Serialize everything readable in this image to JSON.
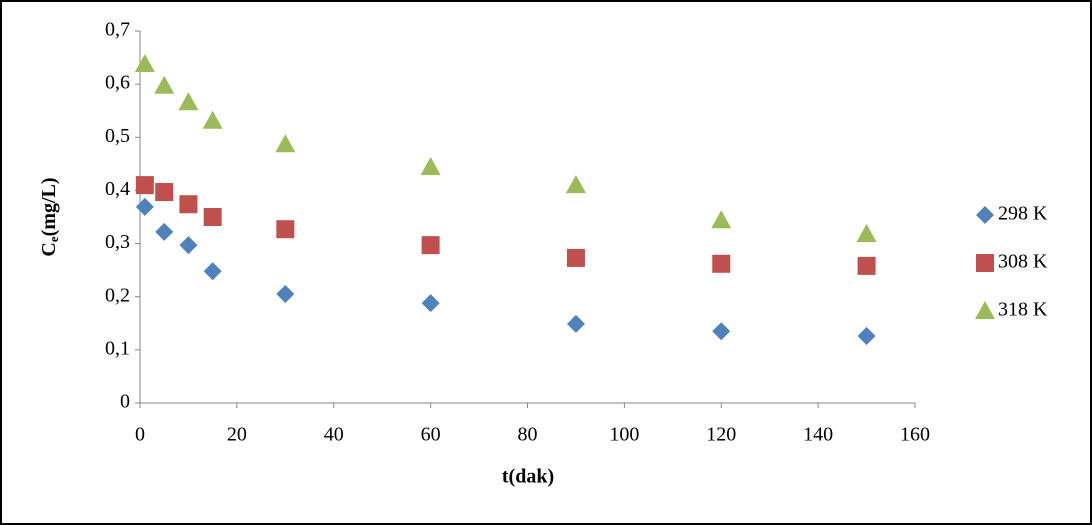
{
  "chart_data": {
    "type": "scatter",
    "x_label": "t(dak)",
    "y_label": [
      "C",
      "e",
      "(mg/L)"
    ],
    "xlim": [
      0,
      160
    ],
    "xticks": [
      0,
      20,
      40,
      60,
      80,
      100,
      120,
      140,
      160
    ],
    "ylim": [
      0,
      0.7
    ],
    "yticks": [
      0,
      {
        "value": 0.1,
        "label": "0,1"
      },
      {
        "value": 0.2,
        "label": "0,2"
      },
      {
        "value": 0.3,
        "label": "0,3"
      },
      {
        "value": 0.4,
        "label": "0,4"
      },
      {
        "value": 0.5,
        "label": "0,5"
      },
      {
        "value": 0.6,
        "label": "0,6"
      },
      {
        "value": 0.7,
        "label": "0,7"
      }
    ],
    "legend": "right",
    "series": [
      {
        "name": "298 K",
        "color": "#4f81bd",
        "marker": "diamond",
        "x": [
          1,
          5,
          10,
          15,
          30,
          60,
          90,
          120,
          150
        ],
        "values": [
          0.369,
          0.322,
          0.297,
          0.248,
          0.205,
          0.188,
          0.149,
          0.135,
          0.126
        ]
      },
      {
        "name": "308 K",
        "color": "#c0504d",
        "marker": "square",
        "x": [
          1,
          5,
          10,
          15,
          30,
          60,
          90,
          120,
          150
        ],
        "values": [
          0.41,
          0.397,
          0.374,
          0.35,
          0.327,
          0.297,
          0.273,
          0.262,
          0.258
        ]
      },
      {
        "name": "318 K",
        "color": "#9bbb59",
        "marker": "triangle",
        "x": [
          1,
          5,
          10,
          15,
          30,
          60,
          90,
          120,
          150
        ],
        "values": [
          0.638,
          0.597,
          0.566,
          0.531,
          0.487,
          0.444,
          0.41,
          0.344,
          0.318
        ]
      }
    ]
  }
}
